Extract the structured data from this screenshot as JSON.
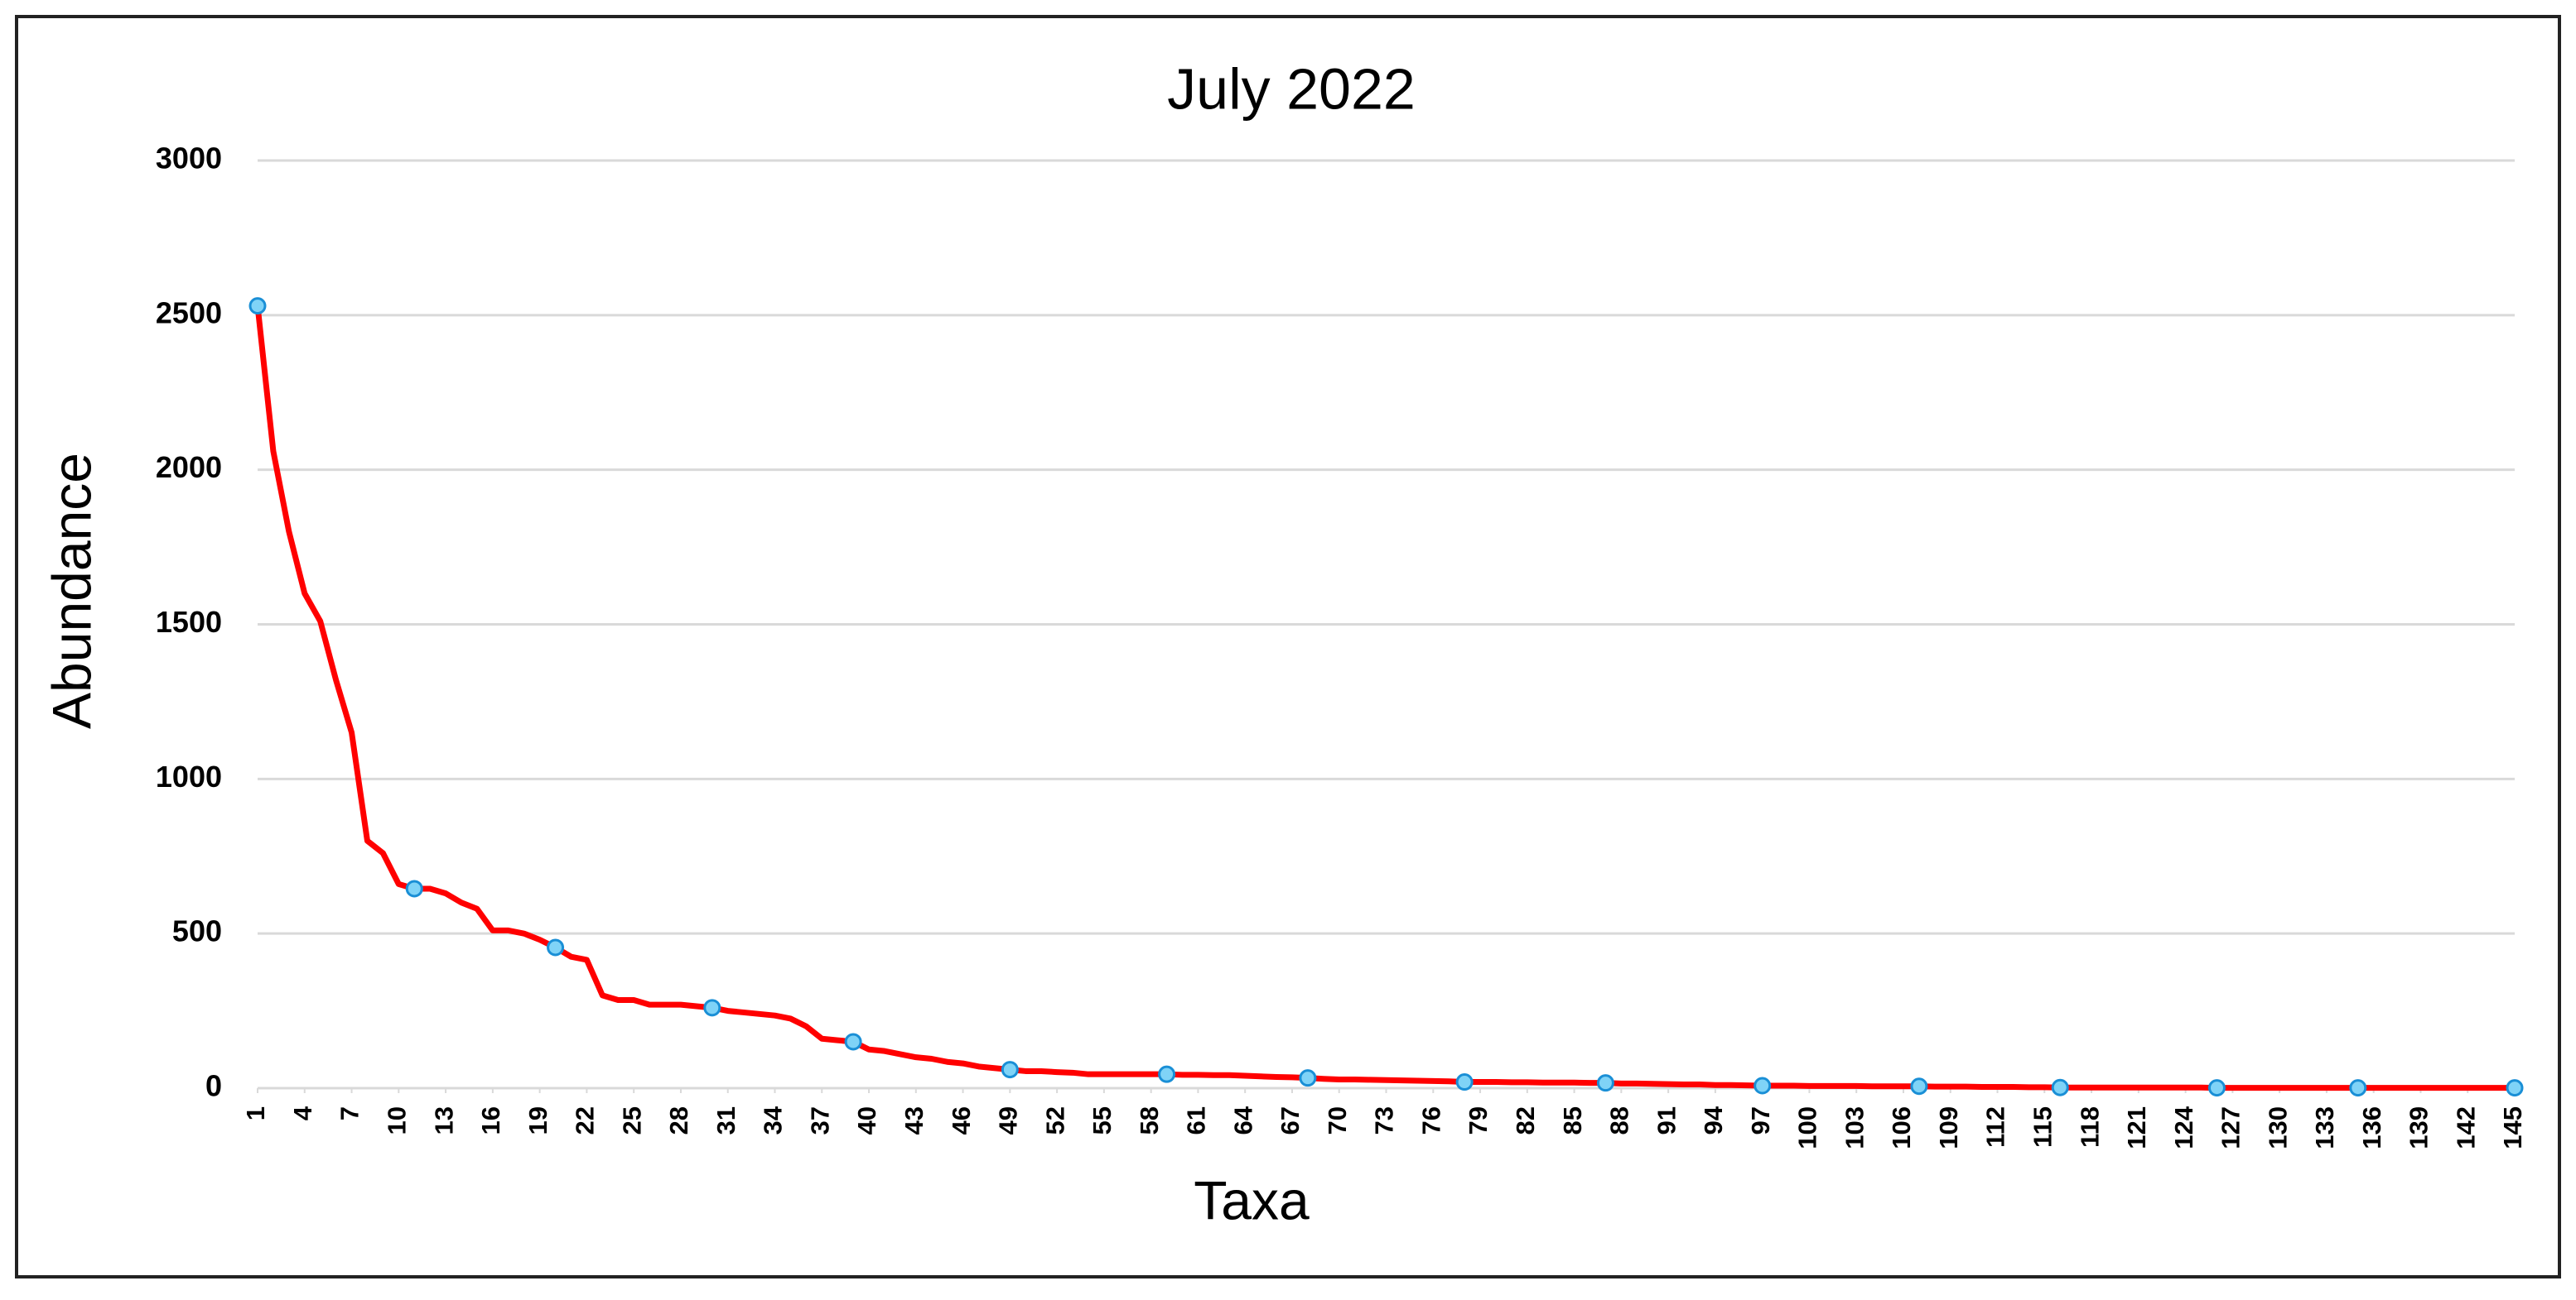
{
  "chart_data": {
    "type": "line",
    "title": "July 2022",
    "xlabel": "Taxa",
    "ylabel": "Abundance",
    "x": [
      1,
      2,
      3,
      4,
      5,
      6,
      7,
      8,
      9,
      10,
      11,
      12,
      13,
      14,
      15,
      16,
      17,
      18,
      19,
      20,
      21,
      22,
      23,
      24,
      25,
      26,
      27,
      28,
      29,
      30,
      31,
      32,
      33,
      34,
      35,
      36,
      37,
      38,
      39,
      40,
      41,
      42,
      43,
      44,
      45,
      46,
      47,
      48,
      49,
      50,
      51,
      52,
      53,
      54,
      55,
      56,
      57,
      58,
      59,
      60,
      61,
      62,
      63,
      64,
      65,
      66,
      67,
      68,
      69,
      70,
      71,
      72,
      73,
      74,
      75,
      76,
      77,
      78,
      79,
      80,
      81,
      82,
      83,
      84,
      85,
      86,
      87,
      88,
      89,
      90,
      91,
      92,
      93,
      94,
      95,
      96,
      97,
      98,
      99,
      100,
      101,
      102,
      103,
      104,
      105,
      106,
      107,
      108,
      109,
      110,
      111,
      112,
      113,
      114,
      115,
      116,
      117,
      118,
      119,
      120,
      121,
      122,
      123,
      124,
      125,
      126,
      127,
      128,
      129,
      130,
      131,
      132,
      133,
      134,
      135,
      136,
      137,
      138,
      139,
      140,
      141,
      142,
      143,
      144,
      145
    ],
    "series": [
      {
        "name": "Abundance",
        "color": "#ff0000",
        "marker_color": "#7fd3f7",
        "marker_edge": "#1a8fd6",
        "values": [
          2530,
          2060,
          1800,
          1600,
          1510,
          1320,
          1150,
          800,
          760,
          660,
          645,
          645,
          630,
          600,
          580,
          510,
          510,
          500,
          480,
          455,
          425,
          415,
          300,
          285,
          285,
          270,
          270,
          270,
          265,
          260,
          250,
          245,
          240,
          235,
          225,
          200,
          160,
          155,
          150,
          125,
          120,
          110,
          100,
          95,
          85,
          80,
          70,
          65,
          60,
          55,
          55,
          52,
          50,
          45,
          45,
          45,
          45,
          45,
          45,
          43,
          43,
          42,
          42,
          40,
          38,
          36,
          35,
          33,
          30,
          28,
          28,
          27,
          26,
          25,
          24,
          23,
          22,
          20,
          20,
          20,
          19,
          19,
          18,
          18,
          18,
          17,
          17,
          15,
          15,
          14,
          13,
          12,
          12,
          10,
          10,
          9,
          8,
          8,
          8,
          7,
          7,
          7,
          7,
          6,
          6,
          6,
          6,
          5,
          5,
          5,
          4,
          4,
          4,
          3,
          3,
          2,
          2,
          2,
          2,
          2,
          2,
          2,
          2,
          2,
          2,
          1,
          1,
          1,
          1,
          1,
          1,
          1,
          1,
          1,
          1,
          1,
          1,
          1,
          1,
          1,
          1,
          1,
          1,
          1,
          1
        ],
        "markers": [
          1,
          11,
          20,
          30,
          39,
          49,
          59,
          68,
          78,
          87,
          97,
          107,
          116,
          126,
          135,
          145
        ]
      }
    ],
    "xlim": [
      1,
      145
    ],
    "xticks": [
      1,
      4,
      7,
      10,
      13,
      16,
      19,
      22,
      25,
      28,
      31,
      34,
      37,
      40,
      43,
      46,
      49,
      52,
      55,
      58,
      61,
      64,
      67,
      70,
      73,
      76,
      79,
      82,
      85,
      88,
      91,
      94,
      97,
      100,
      103,
      106,
      109,
      112,
      115,
      118,
      121,
      124,
      127,
      130,
      133,
      136,
      139,
      142,
      145
    ],
    "ylim": [
      0,
      3000
    ],
    "yticks": [
      0,
      500,
      1000,
      1500,
      2000,
      2500,
      3000
    ],
    "grid": true
  }
}
